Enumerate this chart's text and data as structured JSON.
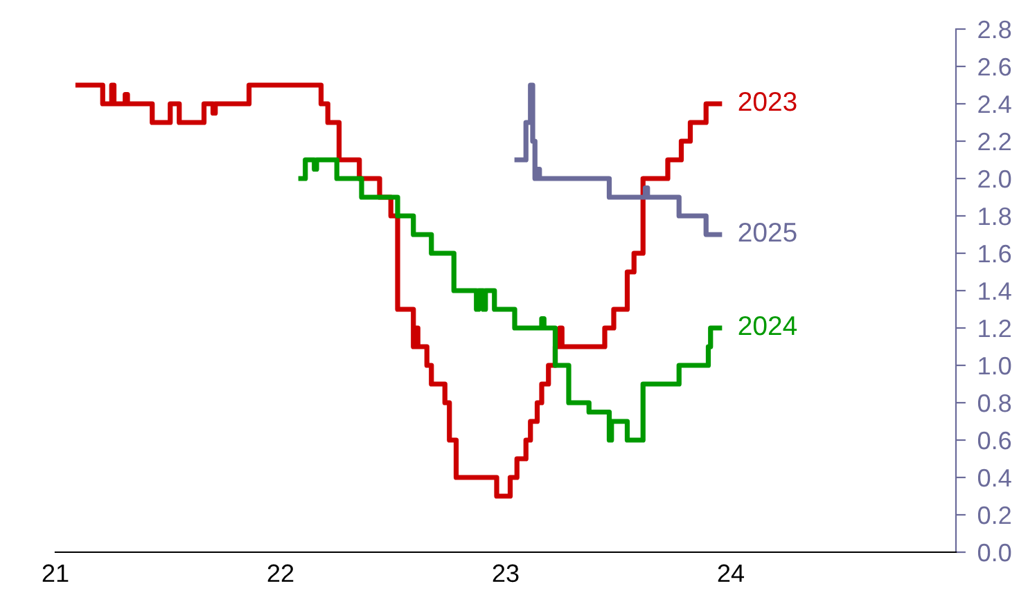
{
  "chart_data": {
    "type": "step",
    "xlim": [
      21,
      25
    ],
    "xticks": [
      21,
      22,
      23,
      24
    ],
    "ylim": [
      0,
      2.8
    ],
    "yticks": [
      {
        "value": 0,
        "label": "0.0"
      },
      {
        "value": 0.2,
        "label": "0.2"
      },
      {
        "value": 0.4,
        "label": "0.4"
      },
      {
        "value": 0.6,
        "label": "0.6"
      },
      {
        "value": 0.8,
        "label": "0.8"
      },
      {
        "value": 1.0,
        "label": "1.0"
      },
      {
        "value": 1.2,
        "label": "1.2"
      },
      {
        "value": 1.4,
        "label": "1.4"
      },
      {
        "value": 1.6,
        "label": "1.6"
      },
      {
        "value": 1.8,
        "label": "1.8"
      },
      {
        "value": 2.0,
        "label": "2.0"
      },
      {
        "value": 2.2,
        "label": "2.2"
      },
      {
        "value": 2.4,
        "label": "2.4"
      },
      {
        "value": 2.6,
        "label": "2.6"
      },
      {
        "value": 2.8,
        "label": "2.8"
      }
    ],
    "grid": false,
    "legend": false,
    "line_style": "solid",
    "marker": "none",
    "series": [
      {
        "name": "2023",
        "color": "#cc0000",
        "x": [
          21.1,
          21.21,
          21.25,
          21.26,
          21.31,
          21.32,
          21.43,
          21.51,
          21.55,
          21.66,
          21.7,
          21.71,
          21.86,
          22.18,
          22.21,
          22.26,
          22.35,
          22.44,
          22.49,
          22.52,
          22.59,
          22.6,
          22.61,
          22.65,
          22.67,
          22.73,
          22.75,
          22.78,
          22.96,
          23.02,
          23.05,
          23.09,
          23.11,
          23.14,
          23.16,
          23.19,
          23.22,
          23.24,
          23.25,
          23.44,
          23.48,
          23.54,
          23.57,
          23.61,
          23.72,
          23.78,
          23.82,
          23.89,
          23.95
        ],
        "values": [
          2.5,
          2.4,
          2.5,
          2.4,
          2.45,
          2.4,
          2.3,
          2.4,
          2.3,
          2.4,
          2.35,
          2.4,
          2.5,
          2.4,
          2.3,
          2.1,
          2.0,
          1.9,
          1.8,
          1.3,
          1.1,
          1.2,
          1.1,
          1.0,
          0.9,
          0.8,
          0.6,
          0.4,
          0.3,
          0.4,
          0.5,
          0.6,
          0.7,
          0.8,
          0.9,
          1.0,
          1.1,
          1.2,
          1.1,
          1.2,
          1.3,
          1.5,
          1.6,
          2.0,
          2.1,
          2.2,
          2.3,
          2.4,
          2.4
        ]
      },
      {
        "name": "2024",
        "color": "#009900",
        "x": [
          22.09,
          22.11,
          22.15,
          22.16,
          22.25,
          22.36,
          22.52,
          22.59,
          22.67,
          22.77,
          22.87,
          22.88,
          22.9,
          22.91,
          22.95,
          23.04,
          23.16,
          23.17,
          23.22,
          23.28,
          23.37,
          23.46,
          23.47,
          23.54,
          23.61,
          23.77,
          23.9,
          23.91,
          23.95
        ],
        "values": [
          2.0,
          2.1,
          2.05,
          2.1,
          2.0,
          1.9,
          1.8,
          1.7,
          1.6,
          1.4,
          1.3,
          1.4,
          1.3,
          1.4,
          1.3,
          1.2,
          1.25,
          1.2,
          1.0,
          0.8,
          0.75,
          0.6,
          0.7,
          0.6,
          0.9,
          1.0,
          1.1,
          1.2,
          1.2
        ]
      },
      {
        "name": "2025",
        "color": "#6b6b9a",
        "x": [
          23.05,
          23.09,
          23.11,
          23.12,
          23.13,
          23.14,
          23.15,
          23.46,
          23.62,
          23.63,
          23.77,
          23.89,
          23.95
        ],
        "values": [
          2.1,
          2.3,
          2.5,
          2.2,
          2.0,
          2.05,
          2.0,
          1.9,
          1.95,
          1.9,
          1.8,
          1.7,
          1.7
        ]
      }
    ]
  }
}
